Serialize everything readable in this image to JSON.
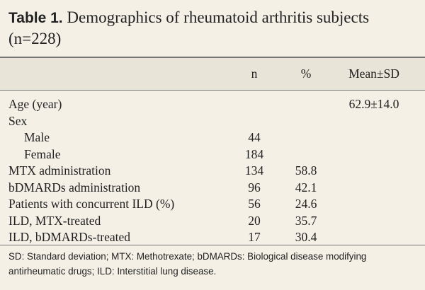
{
  "table": {
    "label": "Table 1.",
    "title": "Demographics of rheumatoid arthritis subjects (n=228)",
    "columns": [
      "n",
      "%",
      "Mean±SD"
    ],
    "rows": [
      {
        "label": "Age (year)",
        "mean": "62.9±14.0"
      },
      {
        "label": "Sex",
        "items": [
          {
            "label": "Male",
            "n": 44
          },
          {
            "label": "Female",
            "n": 184
          }
        ]
      },
      {
        "label": "MTX administration",
        "n": 134,
        "pct": 58.8
      },
      {
        "label": "bDMARDs administration",
        "n": 96,
        "pct": 42.1
      },
      {
        "label": "Patients with concurrent ILD (%)",
        "n": 56,
        "pct": 24.6
      },
      {
        "label": "ILD, MTX-treated",
        "n": 20,
        "pct": 35.7
      },
      {
        "label": "ILD, bDMARDs-treated",
        "n": 17,
        "pct": 30.4
      }
    ],
    "footnote": "SD: Standard deviation; MTX: Methotrexate; bDMARDs: Biological disease modifying antirheumatic drugs; ILD: Interstitial lung disease."
  }
}
